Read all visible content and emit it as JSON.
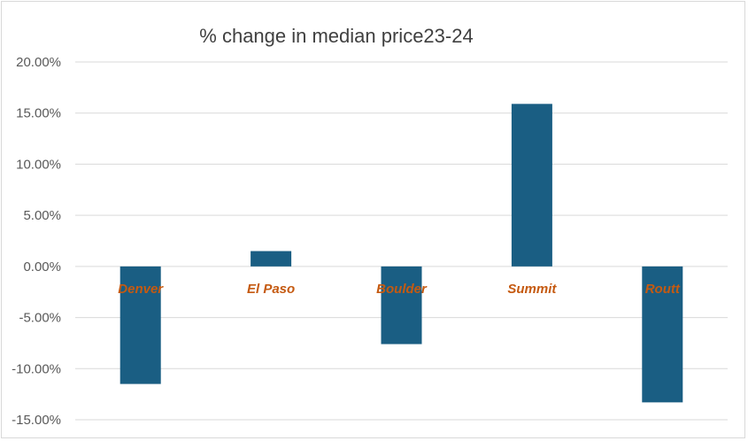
{
  "chart_data": {
    "type": "bar",
    "title": "% change in median price23-24",
    "xlabel": "",
    "ylabel": "",
    "categories": [
      "Denver",
      "El Paso",
      "Boulder",
      "Summit",
      "Routt"
    ],
    "values": [
      -11.5,
      1.5,
      -7.6,
      15.9,
      -13.3
    ],
    "ylim": [
      -15,
      20
    ],
    "yticks": [
      20,
      15,
      10,
      5,
      0,
      -5,
      -10,
      -15
    ],
    "ytick_labels": [
      "20.00%",
      "15.00%",
      "10.00%",
      "5.00%",
      "0.00%",
      "-5.00%",
      "-10.00%",
      "-15.00%"
    ],
    "grid": true,
    "legend": "none",
    "colors": {
      "bar": "#1a5e83",
      "category_label": "#c55a11",
      "grid": "#d9d9d9",
      "tick_label": "#595959",
      "title": "#404040"
    }
  }
}
